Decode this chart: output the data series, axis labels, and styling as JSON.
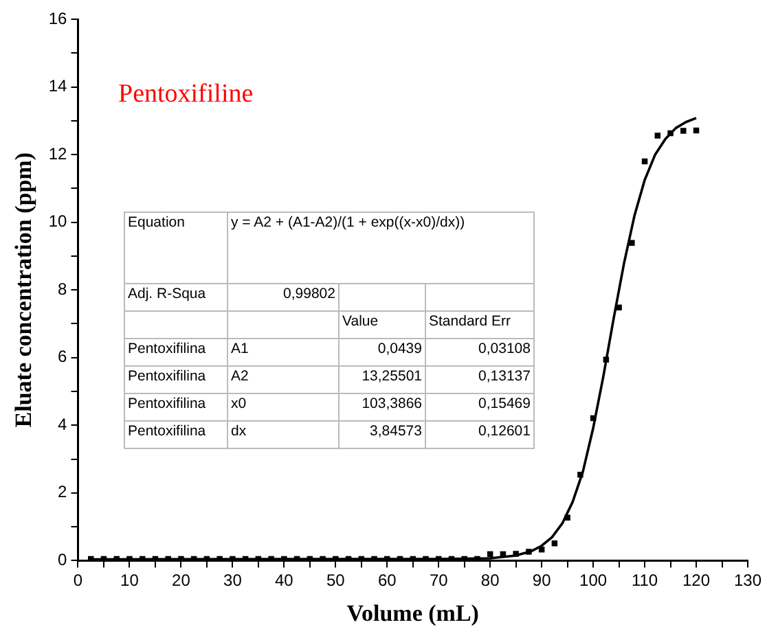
{
  "chart_data": {
    "type": "scatter",
    "xlabel": "Volume (mL)",
    "ylabel": "Eluate concentration (ppm)",
    "xlim": [
      0,
      130
    ],
    "ylim": [
      0,
      16
    ],
    "xticks": [
      0,
      {
        "value": 5,
        "label": null
      },
      10,
      {
        "value": 15,
        "label": null
      },
      20,
      {
        "value": 25,
        "label": null
      },
      30,
      {
        "value": 35,
        "label": null
      },
      40,
      {
        "value": 45,
        "label": null
      },
      50,
      {
        "value": 55,
        "label": null
      },
      60,
      {
        "value": 65,
        "label": null
      },
      70,
      {
        "value": 75,
        "label": null
      },
      80,
      {
        "value": 85,
        "label": null
      },
      90,
      {
        "value": 95,
        "label": null
      },
      100,
      {
        "value": 105,
        "label": null
      },
      110,
      {
        "value": 115,
        "label": null
      },
      120,
      {
        "value": 125,
        "label": null
      },
      130
    ],
    "yticks": [
      0,
      {
        "value": 1,
        "label": null
      },
      2,
      {
        "value": 3,
        "label": null
      },
      4,
      {
        "value": 5,
        "label": null
      },
      6,
      {
        "value": 7,
        "label": null
      },
      8,
      {
        "value": 9,
        "label": null
      },
      10,
      {
        "value": 11,
        "label": null
      },
      12,
      {
        "value": 13,
        "label": null
      },
      14,
      {
        "value": 15,
        "label": null
      },
      16
    ],
    "grid": false,
    "legend": false,
    "series": [
      {
        "type": "scatter",
        "marker": "square",
        "color": "#000000",
        "x": [
          2.5,
          5,
          7.5,
          10,
          12.5,
          15,
          17.5,
          20,
          22.5,
          25,
          27.5,
          30,
          32.5,
          35,
          37.5,
          40,
          42.5,
          45,
          47.5,
          50,
          52.5,
          55,
          57.5,
          60,
          62.5,
          65,
          67.5,
          70,
          72.5,
          75,
          77.5,
          80,
          82.5,
          85,
          87.5,
          90,
          92.5,
          95,
          97.5,
          100,
          102.5,
          105,
          107.5,
          110,
          112.5,
          115,
          117.5,
          120
        ],
        "values": [
          0.05,
          0.05,
          0.05,
          0.05,
          0.05,
          0.05,
          0.05,
          0.05,
          0.05,
          0.05,
          0.05,
          0.05,
          0.05,
          0.05,
          0.05,
          0.05,
          0.05,
          0.05,
          0.05,
          0.05,
          0.05,
          0.05,
          0.05,
          0.05,
          0.05,
          0.05,
          0.05,
          0.05,
          0.05,
          0.05,
          0.05,
          0.19,
          0.19,
          0.2,
          0.26,
          0.33,
          0.51,
          1.27,
          2.54,
          4.21,
          5.94,
          7.48,
          9.39,
          11.8,
          12.56,
          12.63,
          12.7,
          12.71
        ]
      },
      {
        "type": "line",
        "marker": "none",
        "line_style": "solid",
        "color": "#000000",
        "x": [
          2.5,
          70,
          80,
          85,
          88,
          90,
          92,
          94,
          96,
          98,
          100,
          102,
          104,
          106,
          108,
          110,
          112,
          114,
          116,
          118,
          120
        ],
        "values": [
          0.04,
          0.05,
          0.07,
          0.15,
          0.28,
          0.44,
          0.69,
          1.1,
          1.73,
          2.63,
          3.92,
          5.47,
          7.18,
          8.8,
          10.19,
          11.25,
          11.99,
          12.46,
          12.78,
          12.96,
          13.08
        ]
      }
    ],
    "annotations": [
      "Pentoxifiline",
      "Equation",
      "y = A2 + (A1-A2)/(1 + exp((x-x0)/dx))",
      "Adj. R-Squa",
      "0,99802",
      "Value",
      "Standard Err",
      "Pentoxifilina",
      "A1",
      "0,0439",
      "0,03108",
      "Pentoxifilina",
      "A2",
      "13,25501",
      "0,13137",
      "Pentoxifilina",
      "x0",
      "103,3866",
      "0,15469",
      "Pentoxifilina",
      "dx",
      "3,84573",
      "0,12601"
    ]
  }
}
